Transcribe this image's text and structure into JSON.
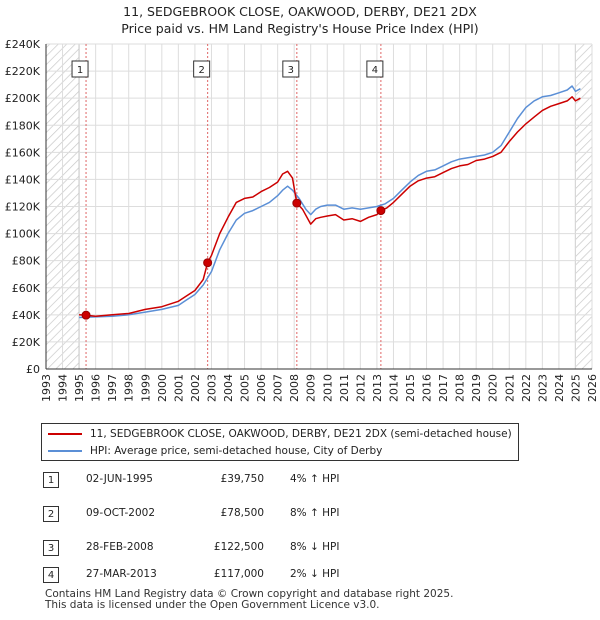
{
  "title": {
    "line1": "11, SEDGEBROOK CLOSE, OAKWOOD, DERBY, DE21 2DX",
    "line2": "Price paid vs. HM Land Registry's House Price Index (HPI)"
  },
  "colors": {
    "price_paid": "#cc0000",
    "hpi": "#5b8fd6",
    "hatch": "#c8c8c8"
  },
  "legend": {
    "price_paid_label": "11, SEDGEBROOK CLOSE, OAKWOOD, DERBY, DE21 2DX (semi-detached house)",
    "hpi_label": "HPI: Average price, semi-detached house, City of Derby"
  },
  "sales": [
    {
      "num": "1",
      "date": "02-JUN-1995",
      "price": "£39,750",
      "hpi": "4% ↑ HPI"
    },
    {
      "num": "2",
      "date": "09-OCT-2002",
      "price": "£78,500",
      "hpi": "8% ↑ HPI"
    },
    {
      "num": "3",
      "date": "28-FEB-2008",
      "price": "£122,500",
      "hpi": "8% ↓ HPI"
    },
    {
      "num": "4",
      "date": "27-MAR-2013",
      "price": "£117,000",
      "hpi": "2% ↓ HPI"
    }
  ],
  "footer": {
    "line1": "Contains HM Land Registry data © Crown copyright and database right 2025.",
    "line2": "This data is licensed under the Open Government Licence v3.0."
  },
  "chart_data": {
    "type": "line",
    "title": "Price paid vs. HM Land Registry's House Price Index (HPI)",
    "xlabel": "",
    "ylabel": "",
    "xlim": [
      1993,
      2026
    ],
    "ylim": [
      0,
      240000
    ],
    "x_ticks": [
      1993,
      1994,
      1995,
      1996,
      1997,
      1998,
      1999,
      2000,
      2001,
      2002,
      2003,
      2004,
      2005,
      2006,
      2007,
      2008,
      2009,
      2010,
      2011,
      2012,
      2013,
      2014,
      2015,
      2016,
      2017,
      2018,
      2019,
      2020,
      2021,
      2022,
      2023,
      2024,
      2025,
      2026
    ],
    "y_ticks": [
      {
        "value": 0,
        "label": "£0"
      },
      {
        "value": 20000,
        "label": "£20K"
      },
      {
        "value": 40000,
        "label": "£40K"
      },
      {
        "value": 60000,
        "label": "£60K"
      },
      {
        "value": 80000,
        "label": "£80K"
      },
      {
        "value": 100000,
        "label": "£100K"
      },
      {
        "value": 120000,
        "label": "£120K"
      },
      {
        "value": 140000,
        "label": "£140K"
      },
      {
        "value": 160000,
        "label": "£160K"
      },
      {
        "value": 180000,
        "label": "£180K"
      },
      {
        "value": 200000,
        "label": "£200K"
      },
      {
        "value": 220000,
        "label": "£220K"
      },
      {
        "value": 240000,
        "label": "£240K"
      }
    ],
    "grid": true,
    "hatched_ranges": [
      [
        1993,
        1995.0
      ],
      [
        2025.0,
        2026
      ]
    ],
    "sale_markers": [
      {
        "label": "1",
        "x": 1995.42,
        "y": 39750
      },
      {
        "label": "2",
        "x": 2002.77,
        "y": 78500
      },
      {
        "label": "3",
        "x": 2008.16,
        "y": 122500
      },
      {
        "label": "4",
        "x": 2013.24,
        "y": 117000
      }
    ],
    "series": [
      {
        "name": "11, SEDGEBROOK CLOSE, OAKWOOD, DERBY, DE21 2DX (semi-detached house)",
        "color": "#cc0000",
        "x": [
          1995.0,
          1995.42,
          1996.0,
          1997.0,
          1998.0,
          1999.0,
          2000.0,
          2001.0,
          2001.5,
          2002.0,
          2002.5,
          2002.77,
          2003.0,
          2003.5,
          2004.0,
          2004.5,
          2005.0,
          2005.5,
          2006.0,
          2006.5,
          2007.0,
          2007.3,
          2007.6,
          2007.9,
          2008.16,
          2008.5,
          2009.0,
          2009.3,
          2009.6,
          2010.0,
          2010.5,
          2011.0,
          2011.5,
          2012.0,
          2012.5,
          2013.0,
          2013.24,
          2013.6,
          2014.0,
          2014.5,
          2015.0,
          2015.5,
          2016.0,
          2016.5,
          2017.0,
          2017.5,
          2018.0,
          2018.5,
          2019.0,
          2019.5,
          2020.0,
          2020.5,
          2021.0,
          2021.5,
          2022.0,
          2022.5,
          2023.0,
          2023.5,
          2024.0,
          2024.5,
          2024.8,
          2025.0,
          2025.3
        ],
        "y": [
          40000,
          39750,
          39000,
          40000,
          41000,
          44000,
          46000,
          50000,
          54000,
          58000,
          66000,
          78500,
          84000,
          100000,
          112000,
          123000,
          126000,
          127000,
          131000,
          134000,
          138000,
          144000,
          146000,
          141000,
          122500,
          118000,
          107000,
          111000,
          112000,
          113000,
          114000,
          110000,
          111000,
          109000,
          112000,
          114000,
          117000,
          119000,
          123000,
          129000,
          135000,
          139000,
          141000,
          142000,
          145000,
          148000,
          150000,
          151000,
          154000,
          155000,
          157000,
          160000,
          168000,
          175000,
          181000,
          186000,
          191000,
          194000,
          196000,
          198000,
          201000,
          198000,
          200000
        ]
      },
      {
        "name": "HPI: Average price, semi-detached house, City of Derby",
        "color": "#5b8fd6",
        "x": [
          1995.0,
          1996.0,
          1997.0,
          1998.0,
          1999.0,
          2000.0,
          2001.0,
          2001.5,
          2002.0,
          2002.5,
          2003.0,
          2003.5,
          2004.0,
          2004.5,
          2005.0,
          2005.5,
          2006.0,
          2006.5,
          2007.0,
          2007.3,
          2007.6,
          2007.9,
          2008.3,
          2008.7,
          2009.0,
          2009.3,
          2009.6,
          2010.0,
          2010.5,
          2011.0,
          2011.5,
          2012.0,
          2012.5,
          2013.0,
          2013.5,
          2014.0,
          2014.5,
          2015.0,
          2015.5,
          2016.0,
          2016.5,
          2017.0,
          2017.5,
          2018.0,
          2018.5,
          2019.0,
          2019.5,
          2020.0,
          2020.5,
          2021.0,
          2021.5,
          2022.0,
          2022.5,
          2023.0,
          2023.5,
          2024.0,
          2024.5,
          2024.8,
          2025.0,
          2025.3
        ],
        "y": [
          38000,
          38500,
          39000,
          40000,
          42000,
          44000,
          47000,
          51000,
          55000,
          62000,
          72000,
          88000,
          100000,
          110000,
          115000,
          117000,
          120000,
          123000,
          128000,
          132000,
          135000,
          132000,
          126000,
          118000,
          114000,
          118000,
          120000,
          121000,
          121000,
          118000,
          119000,
          118000,
          119000,
          120000,
          122000,
          126000,
          132000,
          138000,
          143000,
          146000,
          147000,
          150000,
          153000,
          155000,
          156000,
          157000,
          158000,
          160000,
          165000,
          175000,
          185000,
          193000,
          198000,
          201000,
          202000,
          204000,
          206000,
          209000,
          205000,
          207000
        ]
      }
    ]
  }
}
